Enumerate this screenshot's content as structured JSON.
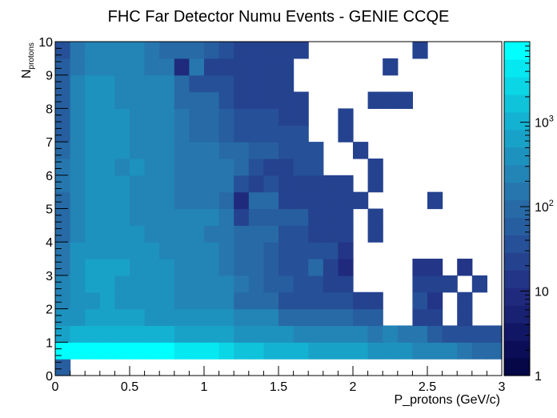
{
  "chart_data": {
    "type": "heatmap",
    "title": "FHC Far Detector Numu Events - GENIE CCQE",
    "xlabel": "P_protons (GeV/c)",
    "ylabel_main": "N",
    "ylabel_sub": "protons",
    "xlim": [
      0,
      3
    ],
    "ylim": [
      0,
      10
    ],
    "x_ticks": [
      "0",
      "0.5",
      "1",
      "1.5",
      "2",
      "2.5",
      "3"
    ],
    "y_ticks": [
      "0",
      "1",
      "2",
      "3",
      "4",
      "5",
      "6",
      "7",
      "8",
      "9",
      "10"
    ],
    "x_bin_width": 0.1,
    "y_bin_width": 0.5,
    "colorbar": {
      "scale": "log",
      "range": [
        1,
        9000
      ],
      "tick_labels": [
        "1",
        "10",
        "10^2",
        "10^3"
      ],
      "colors": [
        "#050746",
        "#0b0e57",
        "#121765",
        "#192172",
        "#1f2a7d",
        "#233586",
        "#25428f",
        "#265097",
        "#275e9f",
        "#276aa6",
        "#2777ae",
        "#2384b6",
        "#1e92bf",
        "#19a2c8",
        "#14b2d2",
        "#0fc3db",
        "#0bd6e6",
        "#06e8f1",
        "#00ffff"
      ]
    },
    "cells": [
      [
        55,
        0,
        0,
        0,
        0,
        0,
        0,
        0,
        0,
        0,
        0,
        0,
        0,
        0,
        0,
        0,
        0,
        0,
        0,
        0,
        0,
        0,
        0,
        0,
        0,
        0,
        0,
        0,
        0,
        0
      ],
      [
        6000,
        6500,
        7000,
        7000,
        7000,
        7000,
        7000,
        7000,
        3500,
        3500,
        3500,
        2200,
        1800,
        1700,
        1300,
        1100,
        900,
        800,
        800,
        700,
        550,
        420,
        380,
        320,
        300,
        260,
        210,
        160,
        110,
        90
      ],
      [
        700,
        950,
        900,
        900,
        900,
        850,
        850,
        850,
        650,
        650,
        650,
        550,
        500,
        500,
        500,
        380,
        300,
        300,
        300,
        300,
        300,
        160,
        250,
        160,
        130,
        60,
        40,
        40,
        35,
        40
      ],
      [
        380,
        500,
        700,
        700,
        600,
        650,
        500,
        500,
        450,
        450,
        400,
        400,
        200,
        200,
        200,
        100,
        100,
        100,
        100,
        100,
        50,
        50,
        0,
        0,
        20,
        20,
        0,
        20,
        0,
        0
      ],
      [
        300,
        400,
        330,
        600,
        400,
        500,
        500,
        350,
        300,
        300,
        300,
        300,
        100,
        100,
        100,
        40,
        40,
        40,
        40,
        40,
        25,
        25,
        0,
        0,
        35,
        15,
        0,
        20,
        0,
        0
      ],
      [
        200,
        350,
        600,
        600,
        500,
        400,
        400,
        350,
        280,
        250,
        200,
        200,
        150,
        120,
        50,
        50,
        40,
        40,
        20,
        20,
        0,
        0,
        0,
        0,
        20,
        20,
        20,
        0,
        20,
        0
      ],
      [
        150,
        400,
        550,
        550,
        550,
        450,
        350,
        350,
        250,
        250,
        200,
        170,
        80,
        80,
        50,
        30,
        30,
        80,
        20,
        10,
        0,
        0,
        0,
        0,
        15,
        15,
        0,
        15,
        0,
        0
      ],
      [
        150,
        350,
        400,
        400,
        400,
        400,
        350,
        300,
        300,
        200,
        200,
        160,
        100,
        100,
        70,
        30,
        30,
        30,
        30,
        15,
        0,
        0,
        0,
        0,
        0,
        0,
        0,
        0,
        0,
        0
      ],
      [
        120,
        300,
        500,
        400,
        400,
        400,
        300,
        300,
        250,
        250,
        160,
        160,
        80,
        120,
        120,
        40,
        40,
        20,
        20,
        20,
        0,
        20,
        0,
        0,
        0,
        0,
        0,
        0,
        0,
        0
      ],
      [
        90,
        300,
        450,
        450,
        450,
        300,
        250,
        250,
        200,
        200,
        200,
        180,
        20,
        50,
        50,
        50,
        50,
        20,
        20,
        20,
        0,
        20,
        0,
        0,
        0,
        0,
        0,
        0,
        0,
        0
      ],
      [
        90,
        300,
        400,
        400,
        400,
        300,
        250,
        250,
        180,
        180,
        160,
        120,
        10,
        80,
        80,
        20,
        20,
        20,
        20,
        20,
        20,
        0,
        0,
        0,
        0,
        20,
        0,
        0,
        0,
        0
      ],
      [
        130,
        280,
        400,
        400,
        400,
        300,
        250,
        250,
        180,
        180,
        180,
        140,
        40,
        20,
        30,
        20,
        20,
        20,
        20,
        20,
        0,
        20,
        0,
        0,
        0,
        0,
        0,
        0,
        0,
        0
      ],
      [
        130,
        300,
        400,
        350,
        200,
        450,
        200,
        220,
        150,
        150,
        150,
        150,
        100,
        40,
        20,
        20,
        40,
        40,
        0,
        0,
        0,
        20,
        0,
        0,
        0,
        0,
        0,
        0,
        0,
        0
      ],
      [
        100,
        300,
        400,
        400,
        400,
        300,
        300,
        300,
        150,
        150,
        150,
        80,
        80,
        60,
        60,
        40,
        40,
        40,
        0,
        0,
        20,
        0,
        0,
        0,
        0,
        0,
        0,
        0,
        0,
        0
      ],
      [
        50,
        300,
        500,
        500,
        400,
        300,
        300,
        200,
        180,
        120,
        120,
        60,
        40,
        40,
        40,
        30,
        30,
        0,
        0,
        20,
        0,
        0,
        0,
        0,
        0,
        0,
        0,
        0,
        0,
        0
      ],
      [
        60,
        300,
        500,
        500,
        400,
        300,
        250,
        250,
        180,
        120,
        120,
        60,
        40,
        40,
        40,
        20,
        20,
        0,
        0,
        20,
        0,
        0,
        0,
        0,
        0,
        0,
        0,
        0,
        0,
        0
      ],
      [
        60,
        250,
        400,
        400,
        300,
        280,
        200,
        200,
        120,
        120,
        80,
        30,
        20,
        20,
        20,
        20,
        20,
        0,
        0,
        0,
        0,
        20,
        20,
        20,
        0,
        0,
        0,
        0,
        0,
        0
      ],
      [
        60,
        250,
        400,
        400,
        300,
        280,
        200,
        200,
        120,
        40,
        40,
        30,
        20,
        20,
        20,
        20,
        0,
        0,
        0,
        0,
        0,
        0,
        0,
        0,
        0,
        0,
        0,
        0,
        0,
        0
      ],
      [
        60,
        150,
        250,
        250,
        250,
        200,
        150,
        150,
        10,
        150,
        20,
        20,
        20,
        20,
        20,
        20,
        0,
        0,
        0,
        0,
        0,
        0,
        20,
        0,
        0,
        0,
        0,
        0,
        0,
        0
      ],
      [
        40,
        150,
        250,
        250,
        250,
        200,
        150,
        120,
        80,
        80,
        60,
        40,
        20,
        20,
        20,
        20,
        20,
        0,
        0,
        0,
        0,
        0,
        0,
        0,
        20,
        0,
        0,
        0,
        0,
        0
      ]
    ]
  }
}
